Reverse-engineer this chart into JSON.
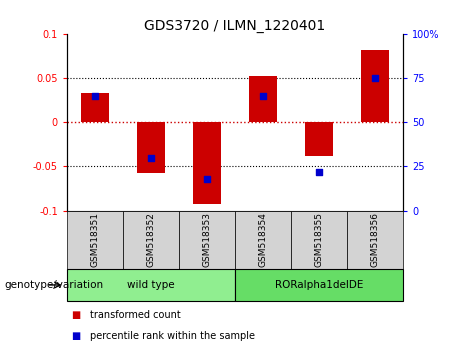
{
  "title": "GDS3720 / ILMN_1220401",
  "samples": [
    "GSM518351",
    "GSM518352",
    "GSM518353",
    "GSM518354",
    "GSM518355",
    "GSM518356"
  ],
  "transformed_count": [
    0.033,
    -0.057,
    -0.092,
    0.052,
    -0.038,
    0.082
  ],
  "percentile_rank": [
    65,
    30,
    18,
    65,
    22,
    75
  ],
  "ylim_left": [
    -0.1,
    0.1
  ],
  "ylim_right": [
    0,
    100
  ],
  "yticks_left": [
    -0.1,
    -0.05,
    0,
    0.05,
    0.1
  ],
  "yticks_right": [
    0,
    25,
    50,
    75,
    100
  ],
  "ytick_labels_left": [
    "-0.1",
    "-0.05",
    "0",
    "0.05",
    "0.1"
  ],
  "ytick_labels_right": [
    "0",
    "25",
    "50",
    "75",
    "100%"
  ],
  "bar_color": "#CC0000",
  "dot_color": "#0000CC",
  "bar_width": 0.5,
  "dot_size": 25,
  "hline_color_zero": "#CC0000",
  "hline_color_grid": "#000000",
  "bg_plot": "#FFFFFF",
  "bg_label": "#D3D3D3",
  "bg_group_wild": "#90EE90",
  "bg_group_ror": "#66DD66",
  "legend_red_label": "transformed count",
  "legend_blue_label": "percentile rank within the sample",
  "group_wild_label": "wild type",
  "group_ror_label": "RORalpha1delDE",
  "genotype_label": "genotype/variation",
  "title_fontsize": 10,
  "tick_fontsize": 7,
  "label_fontsize": 7.5,
  "legend_fontsize": 7,
  "sample_fontsize": 6.5
}
